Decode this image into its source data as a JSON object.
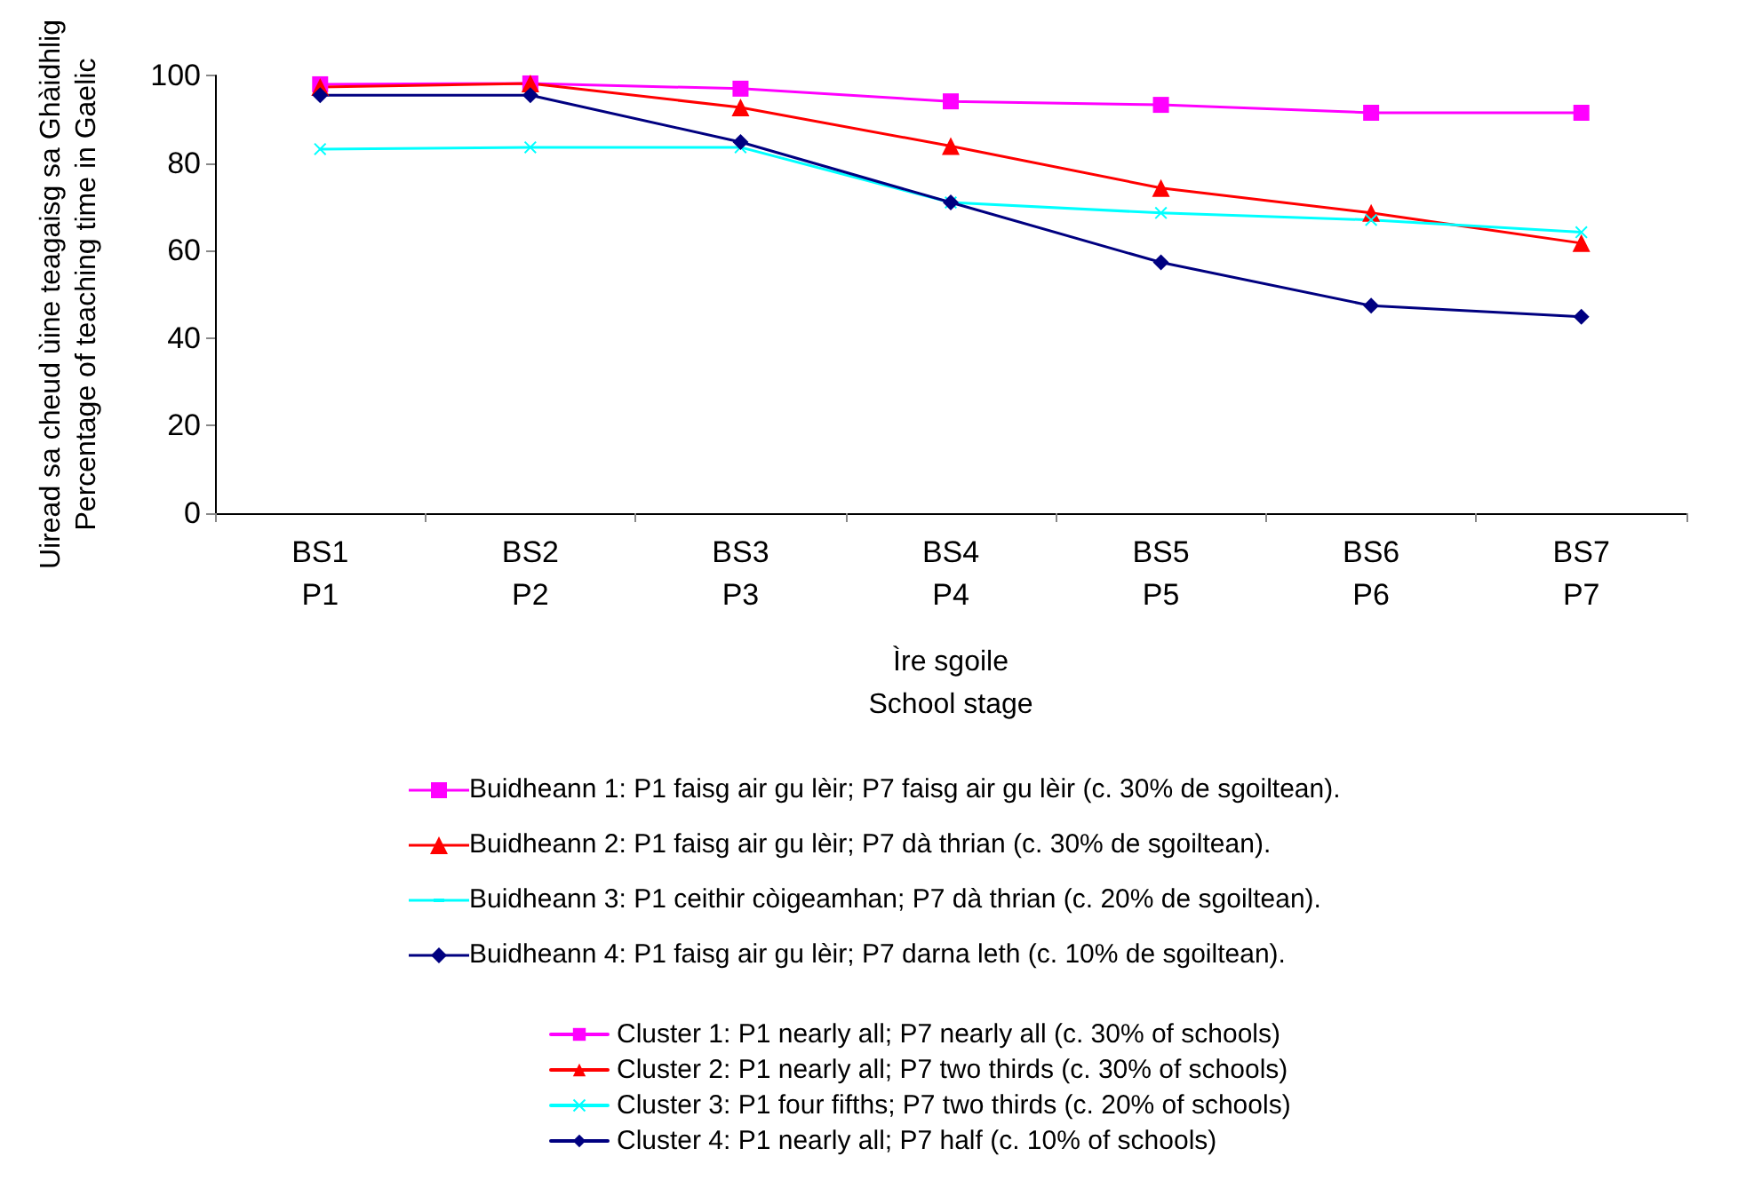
{
  "chart_data": {
    "type": "line",
    "categories": [
      "BS1\nP1",
      "BS2\nP2",
      "BS3\nP3",
      "BS4\nP4",
      "BS5\nP5",
      "BS6\nP6",
      "BS7\nP7"
    ],
    "xlabel": "Ìre sgoile\nSchool stage",
    "ylabel": "Uiread sa cheud ùine teagaisg sa Ghàidhlig\nPercentage of teaching time in Gaelic",
    "ylim": [
      0,
      100
    ],
    "yticks": [
      0,
      20,
      40,
      60,
      80,
      100
    ],
    "grid": false,
    "legend": "bottom",
    "line_style": "solid",
    "annotations": [
      "Buidheann 1: P1 faisg air gu lèir; P7 faisg air gu lèir (c. 30% de sgoiltean).",
      "Buidheann 2: P1 faisg air gu lèir; P7 dà thrian (c. 30% de sgoiltean).",
      "Buidheann 3: P1 ceithir còigeamhan; P7 dà thrian (c. 20% de sgoiltean).",
      "Buidheann 4: P1 faisg air gu lèir; P7 darna leth (c. 10% de sgoiltean)."
    ],
    "series": [
      {
        "name": "Cluster 1: P1 nearly all; P7 nearly all (c. 30% of schools)",
        "color": "#ff00ff",
        "marker": "square",
        "values": [
          98,
          98.2,
          97,
          94.1,
          93.3,
          91.5,
          91.5
        ]
      },
      {
        "name": "Cluster 2: P1 nearly all; P7 two thirds (c. 30% of schools)",
        "color": "#ff0000",
        "marker": "triangle",
        "values": [
          97.4,
          98.2,
          92.7,
          83.9,
          74.3,
          68.6,
          61.7
        ]
      },
      {
        "name": "Cluster 3: P1 four fifths; P7 two thirds (c. 20% of schools)",
        "color": "#00ffff",
        "marker": "cross",
        "values": [
          83.2,
          83.6,
          83.6,
          71,
          68.6,
          67,
          64.2
        ]
      },
      {
        "name": "Cluster 4: P1 nearly all; P7 half (c. 10% of schools)",
        "color": "#000080",
        "marker": "diamond",
        "values": [
          95.5,
          95.5,
          84.8,
          71,
          57.3,
          47.4,
          44.9
        ]
      }
    ]
  }
}
